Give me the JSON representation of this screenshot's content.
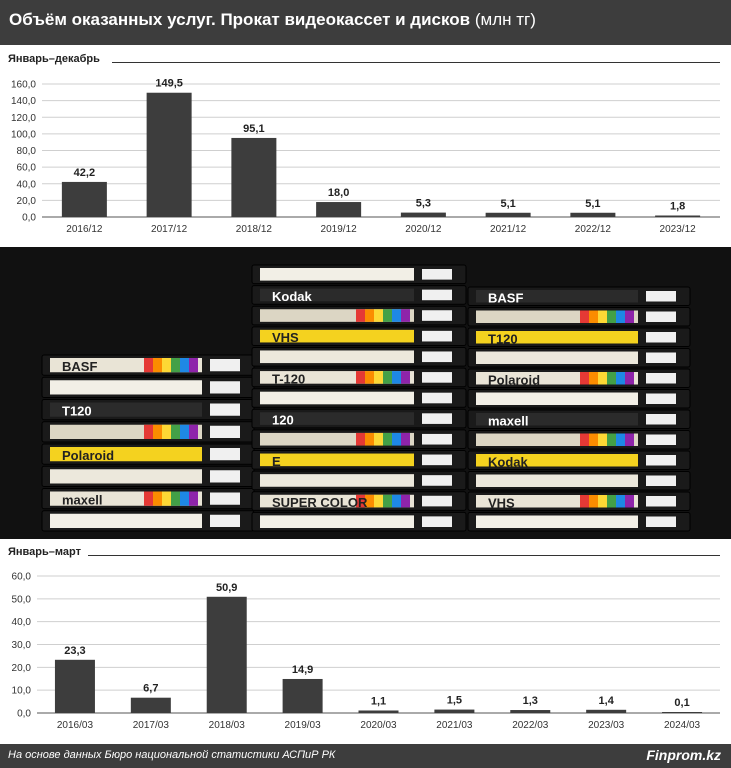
{
  "header": {
    "title": "Объём оказанных услуг. Прокат видеокассет и дисков",
    "unit": "(млн тг)"
  },
  "footer": {
    "source": "На основе данных Бюро национальной статистики АСПиР РК",
    "brand": "Finprom.kz"
  },
  "colors": {
    "bar": "#3d3d3d",
    "header_bg": "#3d3d3d",
    "grid": "#cfcfcf"
  },
  "chart_data": [
    {
      "type": "bar",
      "title": "Январь–декабрь",
      "categories": [
        "2016/12",
        "2017/12",
        "2018/12",
        "2019/12",
        "2020/12",
        "2021/12",
        "2022/12",
        "2023/12"
      ],
      "values": [
        42.2,
        149.5,
        95.1,
        18.0,
        5.3,
        5.1,
        5.1,
        1.8
      ],
      "labels": [
        "42,2",
        "149,5",
        "95,1",
        "18,0",
        "5,3",
        "5,1",
        "5,1",
        "1,8"
      ],
      "yticks": [
        "0,0",
        "20,0",
        "40,0",
        "60,0",
        "80,0",
        "100,0",
        "120,0",
        "140,0",
        "160,0"
      ],
      "ylim": [
        0,
        160
      ],
      "grid": true
    },
    {
      "type": "bar",
      "title": "Январь–март",
      "categories": [
        "2016/03",
        "2017/03",
        "2018/03",
        "2019/03",
        "2020/03",
        "2021/03",
        "2022/03",
        "2023/03",
        "2024/03"
      ],
      "values": [
        23.3,
        6.7,
        50.9,
        14.9,
        1.1,
        1.5,
        1.3,
        1.4,
        0.1
      ],
      "labels": [
        "23,3",
        "6,7",
        "50,9",
        "14,9",
        "1,1",
        "1,5",
        "1,3",
        "1,4",
        "0,1"
      ],
      "yticks": [
        "0,0",
        "10,0",
        "20,0",
        "30,0",
        "40,0",
        "50,0",
        "60,0"
      ],
      "ylim": [
        0,
        60
      ],
      "grid": true
    }
  ],
  "photo": {
    "cassette_labels": [
      "BASF",
      "T120",
      "Polaroid",
      "maxell",
      "Kodak",
      "VHS",
      "T-120",
      "120",
      "E",
      "SUPER COLOR"
    ]
  }
}
